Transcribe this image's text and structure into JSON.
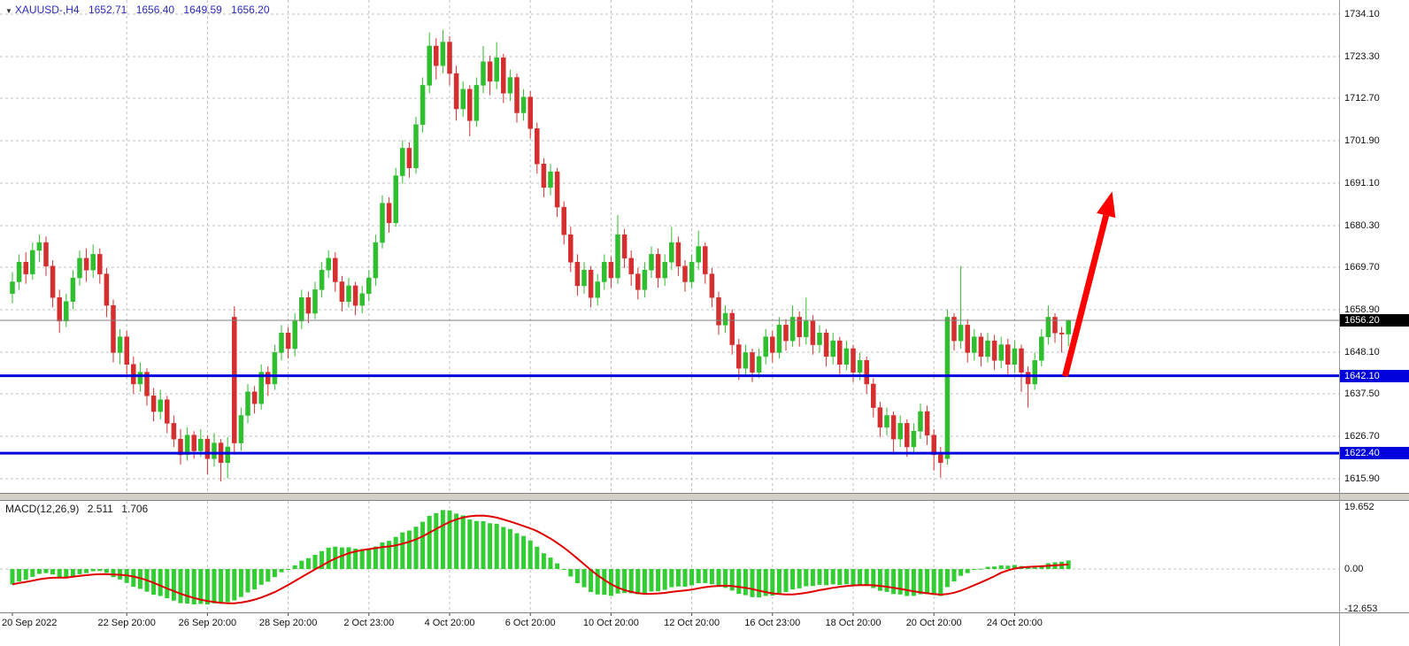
{
  "header": {
    "collapse_icon": "▼",
    "symbol_period": "XAUUSD-,H4",
    "open": "1652.71",
    "high": "1656.40",
    "low": "1649.59",
    "close": "1656.20"
  },
  "colors": {
    "bull": "#2EBE2E",
    "bear": "#D42E2E",
    "grid": "#C0C0C0",
    "support": "#0000DC",
    "arrow": "#FF0000",
    "price_line": "#808080",
    "macd_hist": "#32CD32",
    "macd_signal": "#E00000",
    "header_text": "#2B2BB8",
    "tag_current_bg": "#000000",
    "tag_support_bg": "#0000DC"
  },
  "price_axis": {
    "labels": [
      "1734.10",
      "1723.30",
      "1712.70",
      "1701.90",
      "1691.10",
      "1680.30",
      "1669.70",
      "1658.90",
      "1648.10",
      "1637.50",
      "1626.70",
      "1615.90"
    ],
    "current_price_tag": "1656.20",
    "support_tags": [
      "1642.10",
      "1622.40"
    ]
  },
  "time_axis": {
    "labels": [
      {
        "index": 0,
        "text": "20 Sep 2022"
      },
      {
        "index": 17,
        "text": "22 Sep 20:00"
      },
      {
        "index": 29,
        "text": "26 Sep 20:00"
      },
      {
        "index": 41,
        "text": "28 Sep 20:00"
      },
      {
        "index": 53,
        "text": "2 Oct 23:00"
      },
      {
        "index": 65,
        "text": "4 Oct 20:00"
      },
      {
        "index": 77,
        "text": "6 Oct 20:00"
      },
      {
        "index": 89,
        "text": "10 Oct 20:00"
      },
      {
        "index": 101,
        "text": "12 Oct 20:00"
      },
      {
        "index": 113,
        "text": "16 Oct 23:00"
      },
      {
        "index": 125,
        "text": "18 Oct 20:00"
      },
      {
        "index": 137,
        "text": "20 Oct 20:00"
      },
      {
        "index": 149,
        "text": "24 Oct 20:00"
      }
    ]
  },
  "macd_panel": {
    "name": "MACD(12,26,9)",
    "value_main": "2.511",
    "value_signal": "1.706",
    "axis_labels": [
      "19.652",
      "0.00",
      "-12.653"
    ]
  },
  "chart_data": {
    "type": "candlestick",
    "title": "XAUUSD H4 candlestick chart with MACD(12,26,9) sub-panel, horizontal support lines at 1642.10 and 1622.40, current price 1656.20, and a red upward arrow annotation",
    "symbol": "XAUUSD",
    "timeframe": "H4",
    "ylim": [
      1615.9,
      1734.1
    ],
    "gridline_prices": [
      1734.1,
      1723.3,
      1712.7,
      1701.9,
      1691.1,
      1680.3,
      1669.7,
      1658.9,
      1648.1,
      1637.5,
      1626.7,
      1615.9
    ],
    "ohlc": [
      [
        1663,
        1668.5,
        1660.5,
        1666
      ],
      [
        1666,
        1673,
        1664,
        1671
      ],
      [
        1671,
        1673.5,
        1665.5,
        1668
      ],
      [
        1668,
        1676,
        1666.5,
        1674
      ],
      [
        1674,
        1678,
        1671,
        1676
      ],
      [
        1676,
        1677.5,
        1667.5,
        1670
      ],
      [
        1670,
        1671.5,
        1659.5,
        1662
      ],
      [
        1662,
        1664,
        1653,
        1656
      ],
      [
        1656,
        1663,
        1654.5,
        1661
      ],
      [
        1661,
        1669,
        1659,
        1667
      ],
      [
        1667,
        1674,
        1665,
        1672
      ],
      [
        1672,
        1674.5,
        1666,
        1669
      ],
      [
        1669,
        1675.5,
        1667,
        1673
      ],
      [
        1673,
        1674.5,
        1665.5,
        1668
      ],
      [
        1668,
        1669.5,
        1657,
        1660
      ],
      [
        1660,
        1661.5,
        1645.5,
        1648
      ],
      [
        1648,
        1654,
        1645,
        1652
      ],
      [
        1652,
        1653.5,
        1642.5,
        1645
      ],
      [
        1645,
        1647,
        1637.5,
        1640
      ],
      [
        1640,
        1645.5,
        1638,
        1643
      ],
      [
        1643,
        1644,
        1634.5,
        1637
      ],
      [
        1637,
        1639,
        1630.5,
        1633
      ],
      [
        1633,
        1638.5,
        1631,
        1636
      ],
      [
        1636,
        1637,
        1627.5,
        1630
      ],
      [
        1630,
        1632,
        1624,
        1626
      ],
      [
        1626,
        1628.5,
        1619.5,
        1622
      ],
      [
        1622,
        1629,
        1620.5,
        1627
      ],
      [
        1627,
        1628,
        1621,
        1623
      ],
      [
        1623,
        1628.5,
        1621.5,
        1626
      ],
      [
        1626,
        1627,
        1617,
        1621
      ],
      [
        1621,
        1627.5,
        1619,
        1625
      ],
      [
        1625,
        1626,
        1615.2,
        1620
      ],
      [
        1620,
        1626.5,
        1616,
        1624
      ],
      [
        1657,
        1659.8,
        1622,
        1625
      ],
      [
        1625,
        1634,
        1623,
        1632
      ],
      [
        1632,
        1640,
        1630,
        1638
      ],
      [
        1638,
        1639.5,
        1632.5,
        1635
      ],
      [
        1635,
        1645,
        1633.5,
        1643
      ],
      [
        1643,
        1644.5,
        1637,
        1640
      ],
      [
        1640,
        1650,
        1638.5,
        1648
      ],
      [
        1648,
        1655,
        1646,
        1653
      ],
      [
        1653,
        1654.5,
        1646.5,
        1649
      ],
      [
        1649,
        1658,
        1647,
        1656
      ],
      [
        1656,
        1664,
        1654,
        1662
      ],
      [
        1662,
        1663.5,
        1655.5,
        1658
      ],
      [
        1658,
        1666,
        1656.5,
        1664
      ],
      [
        1664,
        1671,
        1662,
        1669
      ],
      [
        1669,
        1674,
        1667,
        1672
      ],
      [
        1672,
        1673.5,
        1663.5,
        1666
      ],
      [
        1666,
        1667.5,
        1658.5,
        1661
      ],
      [
        1661,
        1667,
        1659.5,
        1665
      ],
      [
        1665,
        1666,
        1657.5,
        1660
      ],
      [
        1660,
        1665,
        1658,
        1663
      ],
      [
        1663,
        1669,
        1661,
        1667
      ],
      [
        1667,
        1678,
        1665,
        1676
      ],
      [
        1676,
        1688,
        1674.5,
        1686
      ],
      [
        1686,
        1687.5,
        1678.5,
        1681
      ],
      [
        1681,
        1695,
        1680,
        1693
      ],
      [
        1693,
        1702,
        1691,
        1700
      ],
      [
        1700,
        1701.5,
        1692.5,
        1695
      ],
      [
        1695,
        1708,
        1693.5,
        1706
      ],
      [
        1706,
        1718,
        1704,
        1716
      ],
      [
        1716,
        1729.4,
        1714,
        1726
      ],
      [
        1726,
        1728,
        1717.5,
        1721
      ],
      [
        1721,
        1730.1,
        1719,
        1727
      ],
      [
        1727,
        1728.5,
        1716,
        1719
      ],
      [
        1719,
        1721,
        1707,
        1710
      ],
      [
        1710,
        1717,
        1708,
        1715
      ],
      [
        1715,
        1716,
        1703,
        1707
      ],
      [
        1707,
        1718,
        1705.5,
        1716
      ],
      [
        1716,
        1726,
        1714,
        1722
      ],
      [
        1722,
        1723.5,
        1713.5,
        1717
      ],
      [
        1717,
        1727,
        1715,
        1723
      ],
      [
        1723,
        1724,
        1711.5,
        1714
      ],
      [
        1714,
        1720,
        1712,
        1718
      ],
      [
        1718,
        1719,
        1706.5,
        1709
      ],
      [
        1709,
        1715,
        1707,
        1713
      ],
      [
        1713,
        1714.5,
        1702.5,
        1705
      ],
      [
        1705,
        1706.5,
        1693.5,
        1696
      ],
      [
        1696,
        1697.5,
        1687.5,
        1690
      ],
      [
        1690,
        1696,
        1688,
        1694
      ],
      [
        1694,
        1695,
        1682.5,
        1685
      ],
      [
        1685,
        1686.5,
        1675.5,
        1678
      ],
      [
        1678,
        1680,
        1668.5,
        1671
      ],
      [
        1671,
        1673,
        1662.5,
        1665
      ],
      [
        1665,
        1671,
        1663,
        1669
      ],
      [
        1669,
        1670,
        1659.5,
        1662
      ],
      [
        1662,
        1668,
        1660,
        1666
      ],
      [
        1666,
        1673,
        1664,
        1671
      ],
      [
        1671,
        1672.5,
        1664.5,
        1667
      ],
      [
        1667,
        1683,
        1665.5,
        1678
      ],
      [
        1678,
        1679.5,
        1669.5,
        1672
      ],
      [
        1672,
        1674,
        1665,
        1668
      ],
      [
        1668,
        1669.5,
        1661.5,
        1664
      ],
      [
        1664,
        1671,
        1662,
        1669
      ],
      [
        1669,
        1675,
        1667,
        1673
      ],
      [
        1673,
        1674.5,
        1664.5,
        1667
      ],
      [
        1667,
        1673,
        1665,
        1671
      ],
      [
        1671,
        1680,
        1669,
        1676
      ],
      [
        1676,
        1677.5,
        1667.5,
        1670
      ],
      [
        1670,
        1671.5,
        1663.5,
        1666
      ],
      [
        1666,
        1673,
        1664.5,
        1671
      ],
      [
        1671,
        1679,
        1669,
        1675
      ],
      [
        1675,
        1676,
        1665.5,
        1668
      ],
      [
        1668,
        1669.5,
        1659.5,
        1662
      ],
      [
        1662,
        1663.5,
        1652.5,
        1655
      ],
      [
        1655,
        1660,
        1653,
        1658
      ],
      [
        1658,
        1659,
        1647.5,
        1650
      ],
      [
        1650,
        1651.5,
        1641,
        1644
      ],
      [
        1644,
        1650,
        1642,
        1648
      ],
      [
        1648,
        1649,
        1640.5,
        1643
      ],
      [
        1643,
        1649,
        1641.5,
        1647
      ],
      [
        1647,
        1654,
        1645,
        1652
      ],
      [
        1652,
        1653.5,
        1645.5,
        1648
      ],
      [
        1648,
        1657,
        1646.5,
        1655
      ],
      [
        1655,
        1656.5,
        1648.5,
        1651
      ],
      [
        1651,
        1660,
        1649.5,
        1657
      ],
      [
        1657,
        1658.5,
        1649.5,
        1652
      ],
      [
        1652,
        1662,
        1650,
        1656
      ],
      [
        1656,
        1657.5,
        1647.5,
        1650
      ],
      [
        1650,
        1655,
        1648,
        1653
      ],
      [
        1653,
        1654,
        1644.5,
        1647
      ],
      [
        1647,
        1653,
        1645,
        1651
      ],
      [
        1651,
        1652,
        1642.5,
        1645
      ],
      [
        1645,
        1651,
        1643.5,
        1649
      ],
      [
        1649,
        1650,
        1640.5,
        1643
      ],
      [
        1643,
        1648,
        1641,
        1646
      ],
      [
        1646,
        1647,
        1637.5,
        1640
      ],
      [
        1640,
        1641.5,
        1631.5,
        1634
      ],
      [
        1634,
        1635.5,
        1626.5,
        1629
      ],
      [
        1629,
        1634,
        1627,
        1632
      ],
      [
        1632,
        1633,
        1622,
        1626
      ],
      [
        1626,
        1632,
        1624,
        1630
      ],
      [
        1630,
        1631,
        1621.5,
        1624
      ],
      [
        1624,
        1630,
        1622.5,
        1628
      ],
      [
        1628,
        1635,
        1626,
        1633
      ],
      [
        1633,
        1634.5,
        1624.5,
        1627
      ],
      [
        1627,
        1628.5,
        1618,
        1622
      ],
      [
        1622,
        1624,
        1616.2,
        1620
      ],
      [
        1621,
        1659,
        1619.5,
        1657
      ],
      [
        1657,
        1658,
        1648.5,
        1651
      ],
      [
        1651,
        1670,
        1649,
        1655
      ],
      [
        1655,
        1656.5,
        1645.5,
        1648
      ],
      [
        1648,
        1654,
        1646,
        1652
      ],
      [
        1652,
        1653,
        1644.5,
        1647
      ],
      [
        1647,
        1653,
        1645.5,
        1651
      ],
      [
        1651,
        1652.5,
        1643.5,
        1646
      ],
      [
        1646,
        1652,
        1644,
        1650
      ],
      [
        1650,
        1651.5,
        1642.5,
        1645
      ],
      [
        1645,
        1651,
        1643,
        1649
      ],
      [
        1649,
        1650,
        1638,
        1643
      ],
      [
        1643,
        1644.5,
        1634,
        1640
      ],
      [
        1640,
        1648,
        1638.5,
        1646
      ],
      [
        1646,
        1654,
        1644.5,
        1652
      ],
      [
        1652,
        1660,
        1650,
        1657
      ],
      [
        1657,
        1658,
        1650.5,
        1653
      ],
      [
        1653,
        1654.5,
        1648,
        1652.7
      ],
      [
        1652.7,
        1656.4,
        1649.6,
        1656.2
      ]
    ],
    "overlays": {
      "support_lines": [
        1642.1,
        1622.4
      ],
      "current_price": 1656.2,
      "arrow": {
        "from_index": 156.5,
        "from_price": 1642.0,
        "to_index": 163.5,
        "to_price": 1689.0
      }
    },
    "macd": {
      "params": [
        12,
        26,
        9
      ],
      "current_macd": 2.511,
      "current_signal": 1.706,
      "axis": [
        19.652,
        0.0,
        -12.653
      ]
    }
  }
}
